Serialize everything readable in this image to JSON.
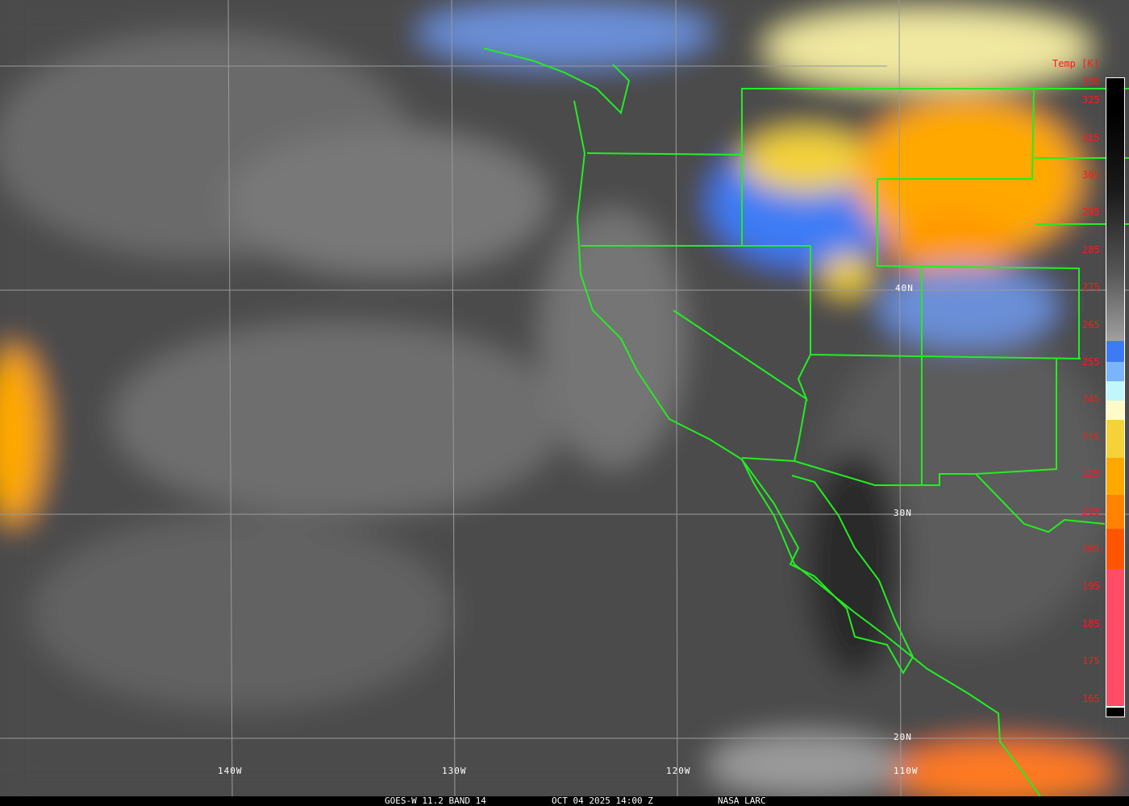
{
  "image": {
    "caption": {
      "satellite_band": "GOES-W 11.2 BAND 14",
      "datetime": "OCT 04 2025 14:00 Z",
      "source": "NASA LARC"
    },
    "colorbar": {
      "title": "Temp [K]",
      "ticks": [
        "330",
        "325",
        "315",
        "305",
        "295",
        "285",
        "275",
        "265",
        "255",
        "245",
        "235",
        "225",
        "215",
        "205",
        "195",
        "185",
        "175",
        "165"
      ],
      "range": [
        165,
        330
      ]
    },
    "longitude_labels": [
      "140W",
      "130W",
      "120W",
      "110W"
    ],
    "latitude_labels": [
      "40N",
      "30N",
      "20N"
    ],
    "colors": {
      "boundaries": "#22ee22",
      "grid": "#9a9a9a",
      "labels": "#ff1a1a"
    }
  }
}
